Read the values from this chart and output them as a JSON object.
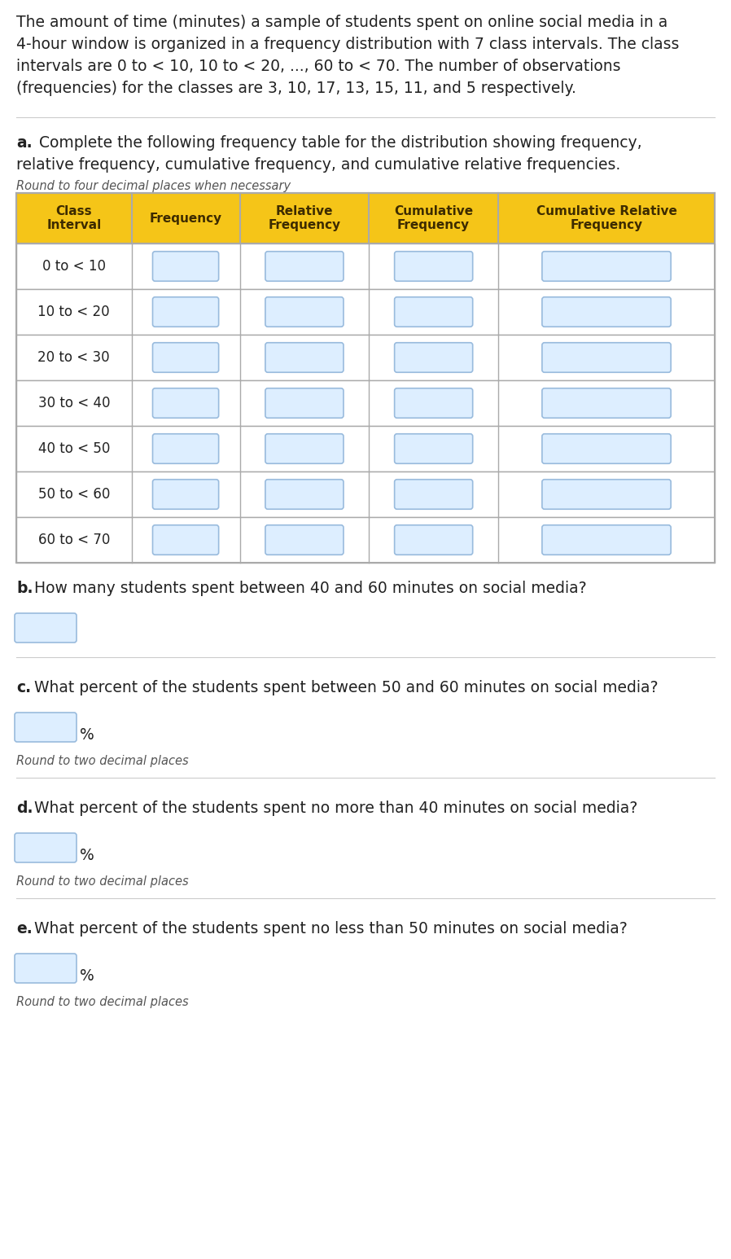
{
  "intro_text_lines": [
    "The amount of time (minutes) a sample of students spent on online social media in a",
    "4-hour window is organized in a frequency distribution with 7 class intervals. The class",
    "intervals are 0 to < 10, 10 to < 20, ..., 60 to < 70. The number of observations",
    "(frequencies) for the classes are 3, 10, 17, 13, 15, 11, and 5 respectively."
  ],
  "part_a_lines": [
    "a. Complete the following frequency table for the distribution showing frequency,",
    "relative frequency, cumulative frequency, and cumulative relative frequencies."
  ],
  "round_note_top": "Round to four decimal places when necessary",
  "table_headers": [
    "Class\nInterval",
    "Frequency",
    "Relative\nFrequency",
    "Cumulative\nFrequency",
    "Cumulative Relative\nFrequency"
  ],
  "class_intervals": [
    "0 to < 10",
    "10 to < 20",
    "20 to < 30",
    "30 to < 40",
    "40 to < 50",
    "50 to < 60",
    "60 to < 70"
  ],
  "header_bg": "#F5C518",
  "header_text": "#3D2B00",
  "row_bg": "#FFFFFF",
  "border_color": "#AAAAAA",
  "input_box_bg": "#DDEEFF",
  "input_box_border": "#99BBDD",
  "part_b_text": "How many students spent between 40 and 60 minutes on social media?",
  "part_c_text": "What percent of the students spent between 50 and 60 minutes on social media?",
  "part_d_text": "What percent of the students spent no more than 40 minutes on social media?",
  "part_e_text": "What percent of the students spent no less than 50 minutes on social media?",
  "round_two": "Round to two decimal places",
  "bg_color": "#FFFFFF",
  "text_color": "#222222",
  "italic_color": "#555555",
  "sep_color": "#CCCCCC",
  "font_size_body": 13.5,
  "font_size_note": 10.5
}
